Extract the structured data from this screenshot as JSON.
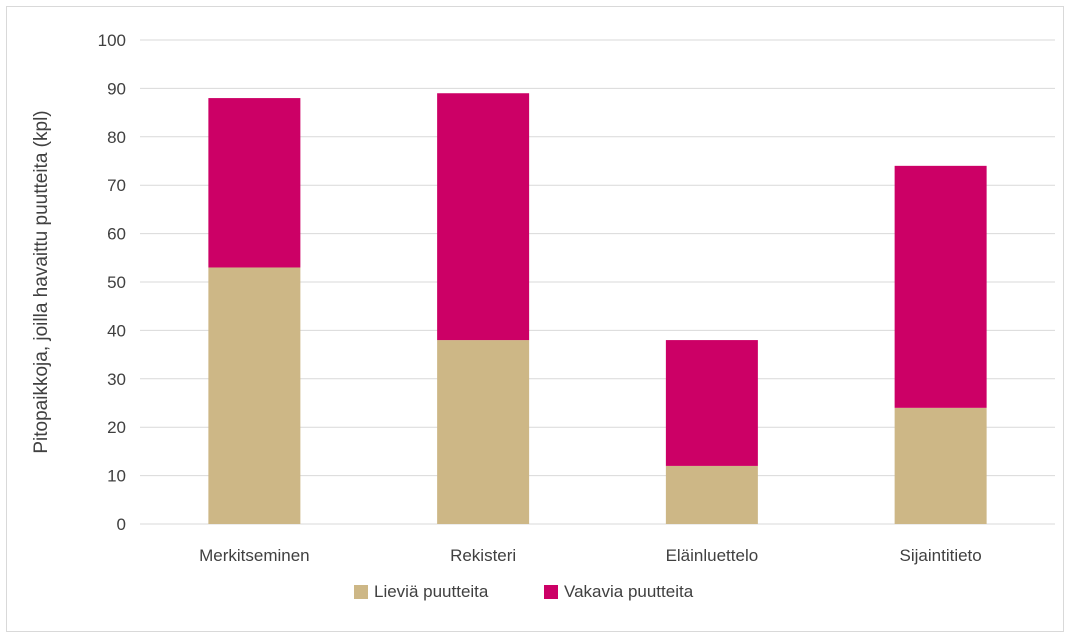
{
  "chart_data": {
    "type": "bar",
    "stacked": true,
    "title": "",
    "xlabel": "",
    "ylabel": "Pitopaikkoja, joilla havaittu puutteita (kpl)",
    "categories": [
      "Merkitseminen",
      "Rekisteri",
      "Eläinluettelo",
      "Sijaintitieto"
    ],
    "series": [
      {
        "name": "Lieviä puutteita",
        "values": [
          53,
          38,
          12,
          24
        ],
        "color": "#cdb786"
      },
      {
        "name": "Vakavia puutteita",
        "values": [
          35,
          51,
          26,
          50
        ],
        "color": "#cc0066"
      }
    ],
    "ylim": [
      0,
      100
    ],
    "yticks": [
      "0",
      "10",
      "20",
      "30",
      "40",
      "50",
      "60",
      "70",
      "80",
      "90",
      "100"
    ],
    "grid": true,
    "legend_position": "bottom",
    "gridline_color": "#d9d9d9",
    "text_color": "#404040"
  }
}
